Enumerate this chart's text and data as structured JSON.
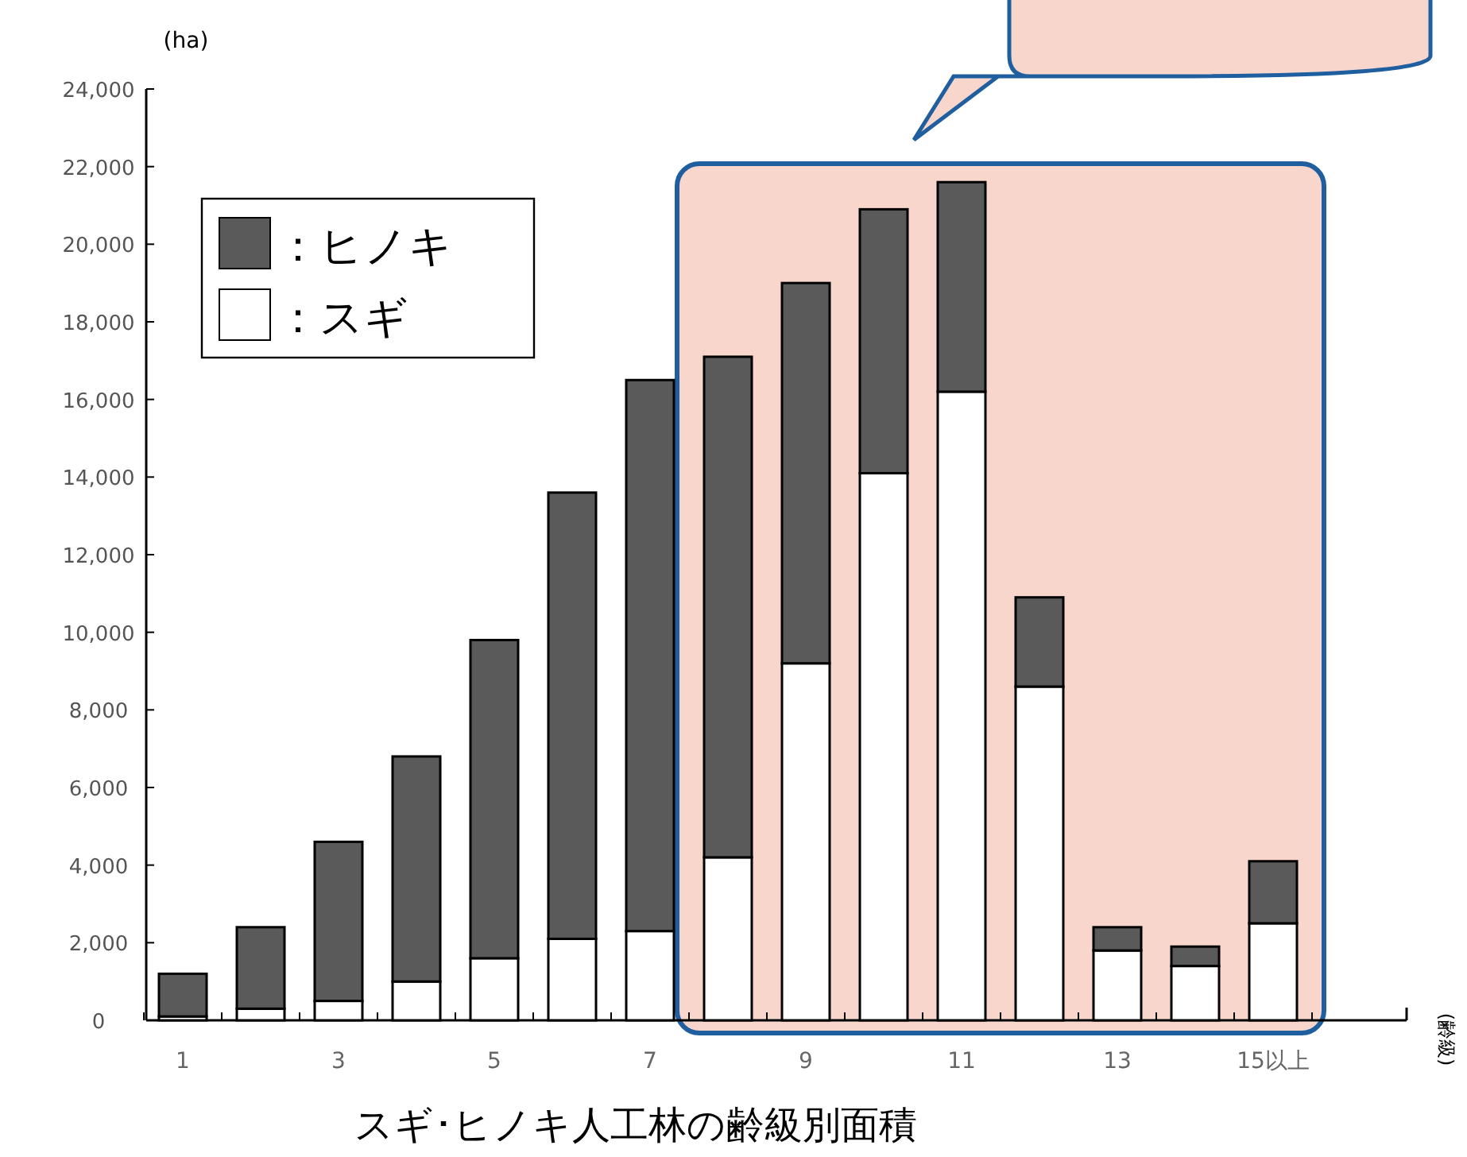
{
  "chart_data": {
    "type": "bar",
    "stacked": true,
    "title": "スギ･ヒノキ人工林の齢級別面積",
    "ylabel": "(ha)",
    "annotations": [
      "(齢級)"
    ],
    "categories": [
      "1",
      null,
      "3",
      null,
      "5",
      null,
      "7",
      null,
      "9",
      null,
      "11",
      null,
      "13",
      null,
      "15以上"
    ],
    "series": [
      {
        "name": "：スギ",
        "color": "#ffffff",
        "values": [
          100,
          300,
          500,
          1000,
          1600,
          2100,
          2300,
          4200,
          9200,
          14100,
          16200,
          8600,
          1800,
          1400,
          2500
        ]
      },
      {
        "name": "：ヒノキ",
        "color": "#5a5a5a",
        "values": [
          1100,
          2100,
          4100,
          5800,
          8200,
          11500,
          14200,
          12900,
          9800,
          6800,
          5400,
          2300,
          600,
          500,
          1600
        ]
      }
    ],
    "ylim": [
      0,
      24000
    ],
    "yticks": [
      {
        "value": 0,
        "label": "0"
      },
      {
        "value": 2000,
        "label": "2,000"
      },
      {
        "value": 4000,
        "label": "4,000"
      },
      {
        "value": 6000,
        "label": "6,000"
      },
      {
        "value": 8000,
        "label": "8,000"
      },
      {
        "value": 10000,
        "label": "10,000"
      },
      {
        "value": 12000,
        "label": "12,000"
      },
      {
        "value": 14000,
        "label": "14,000"
      },
      {
        "value": 16000,
        "label": "16,000"
      },
      {
        "value": 18000,
        "label": "18,000"
      },
      {
        "value": 20000,
        "label": "20,000"
      },
      {
        "value": 22000,
        "label": "22,000"
      },
      {
        "value": 24000,
        "label": "24,000"
      }
    ],
    "legend": "top left",
    "grid": false
  }
}
